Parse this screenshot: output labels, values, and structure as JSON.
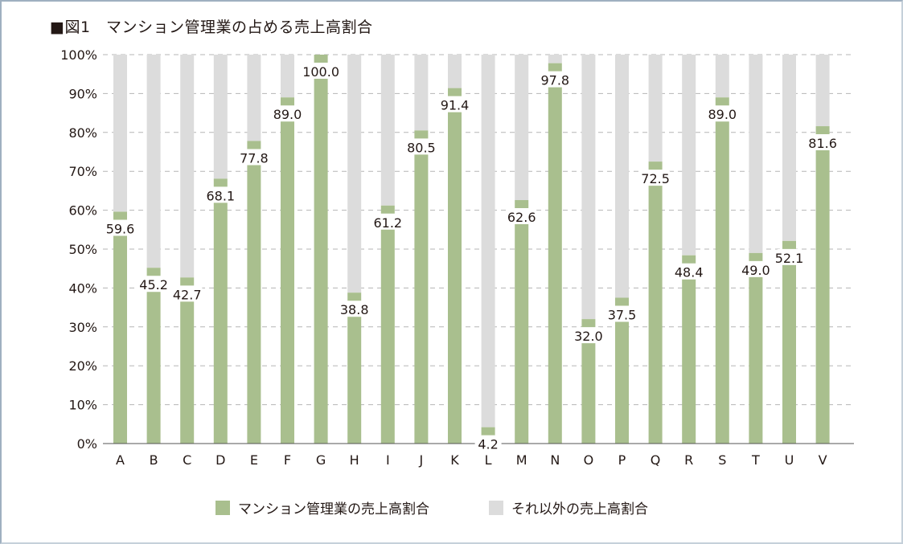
{
  "chart_data": {
    "type": "bar",
    "stacked": true,
    "title": "■図1　マンション管理業の占める売上高割合",
    "xlabel": "",
    "ylabel": "",
    "ylim": [
      0,
      100
    ],
    "yticks": [
      "0%",
      "10%",
      "20%",
      "30%",
      "40%",
      "50%",
      "60%",
      "70%",
      "80%",
      "90%",
      "100%"
    ],
    "grid": "horizontal-dashed",
    "legend_position": "bottom",
    "categories": [
      "A",
      "B",
      "C",
      "D",
      "E",
      "F",
      "G",
      "H",
      "I",
      "J",
      "K",
      "L",
      "M",
      "N",
      "O",
      "P",
      "Q",
      "R",
      "S",
      "T",
      "U",
      "V"
    ],
    "series": [
      {
        "name": "マンション管理業の売上高割合",
        "color": "#a9bf8e",
        "values": [
          59.6,
          45.2,
          42.7,
          68.1,
          77.8,
          89.0,
          100.0,
          38.8,
          61.2,
          80.5,
          91.4,
          4.2,
          62.6,
          97.8,
          32.0,
          37.5,
          72.5,
          48.4,
          89.0,
          49.0,
          52.1,
          81.6
        ]
      },
      {
        "name": "それ以外の売上高割合",
        "color": "#dcdcdc",
        "values": [
          40.4,
          54.8,
          57.3,
          31.9,
          22.2,
          11.0,
          0.0,
          61.2,
          38.8,
          19.5,
          8.6,
          95.8,
          37.4,
          2.2,
          68.0,
          62.5,
          27.5,
          51.6,
          11.0,
          51.0,
          47.9,
          18.4
        ]
      }
    ],
    "data_labels": [
      "59.6",
      "45.2",
      "42.7",
      "68.1",
      "77.8",
      "89.0",
      "100.0",
      "38.8",
      "61.2",
      "80.5",
      "91.4",
      "4.2",
      "62.6",
      "97.8",
      "32.0",
      "37.5",
      "72.5",
      "48.4",
      "89.0",
      "49.0",
      "52.1",
      "81.6"
    ]
  }
}
